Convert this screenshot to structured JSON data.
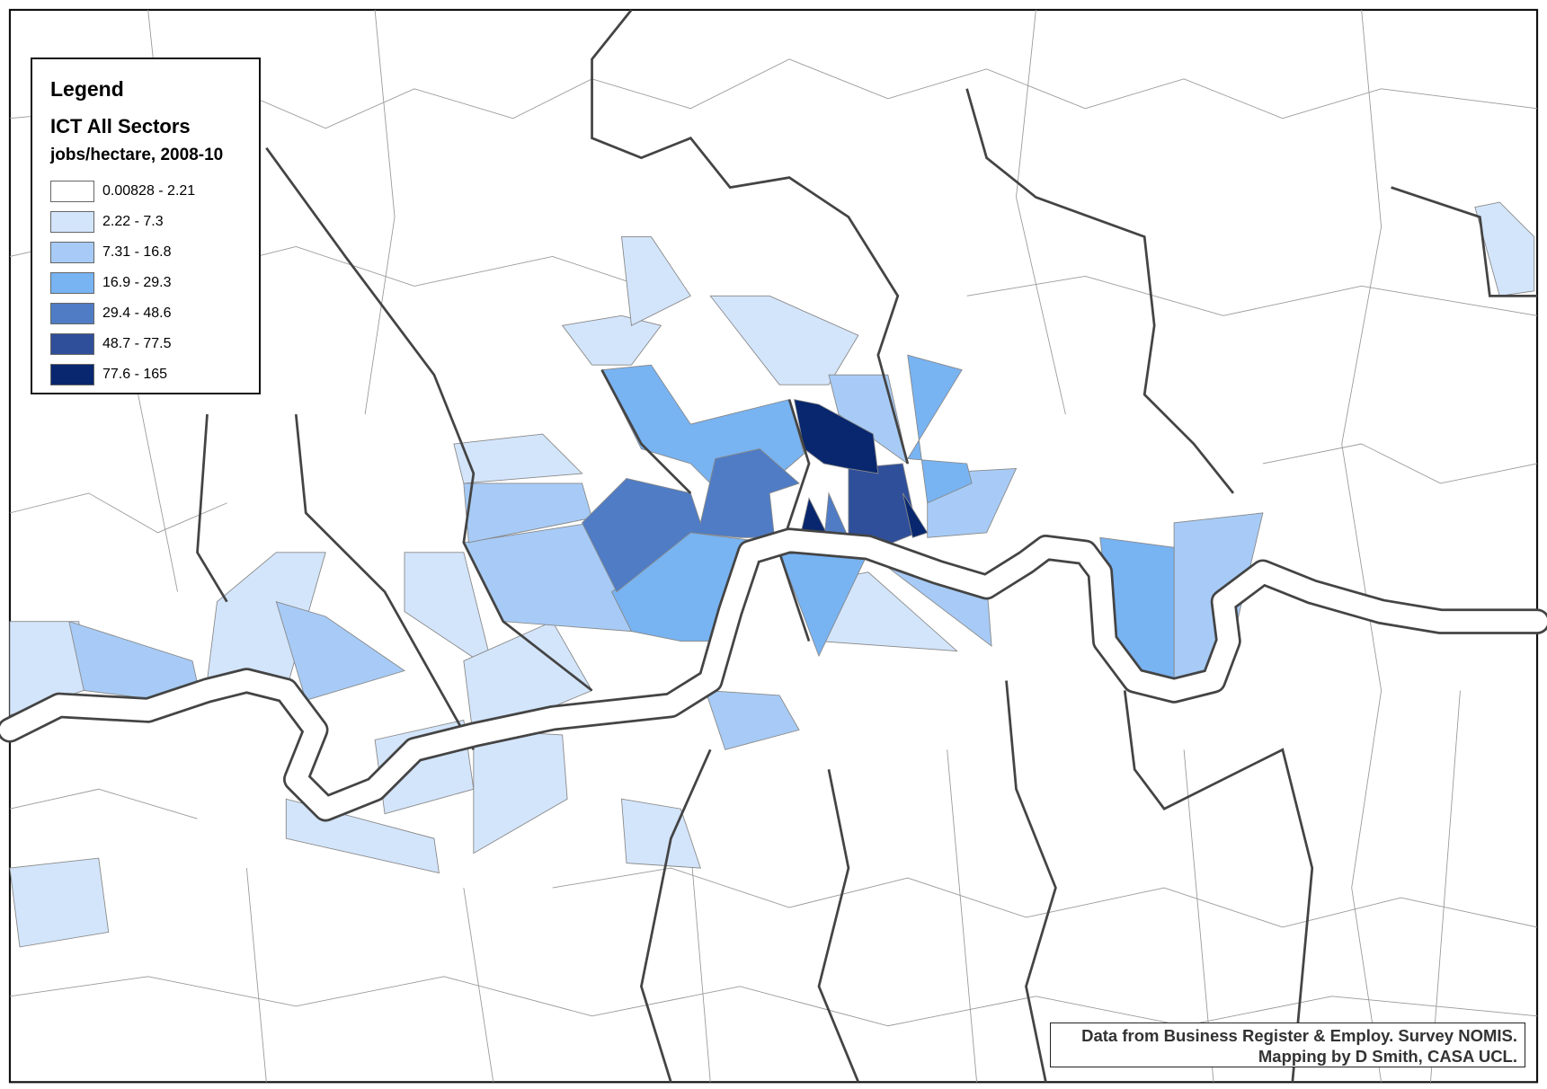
{
  "legend": {
    "title": "Legend",
    "subtitle": "ICT All Sectors",
    "unit": "jobs/hectare, 2008-10",
    "classes": [
      {
        "label": "0.00828 - 2.21",
        "color": "#ffffff"
      },
      {
        "label": "2.22 - 7.3",
        "color": "#d3e5fb"
      },
      {
        "label": "7.31 - 16.8",
        "color": "#a7cbf6"
      },
      {
        "label": "16.9 - 29.3",
        "color": "#78b3f2"
      },
      {
        "label": "29.4 - 48.6",
        "color": "#4f7cc5"
      },
      {
        "label": "48.7 - 77.5",
        "color": "#2f4f9a"
      },
      {
        "label": "77.6 - 165",
        "color": "#08276e"
      }
    ]
  },
  "credit": {
    "line1": "Data from Business Register & Employ. Survey NOMIS.",
    "line2": "Mapping by D Smith, CASA UCL."
  }
}
